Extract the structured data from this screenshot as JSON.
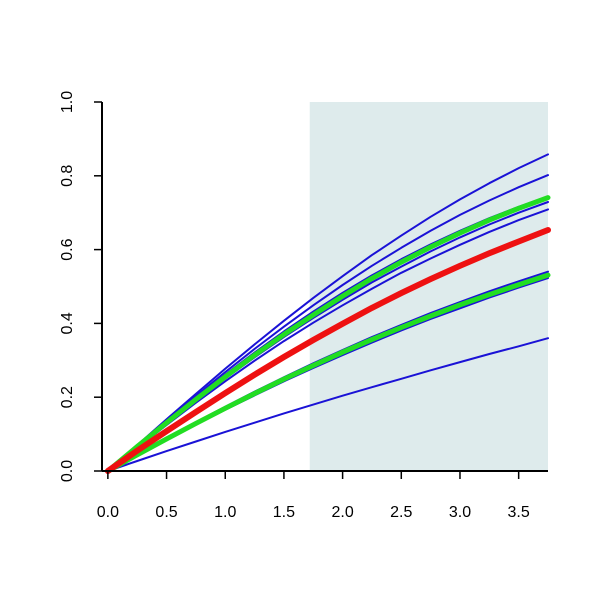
{
  "chart_data": {
    "type": "line",
    "title": "",
    "xlabel": "",
    "ylabel": "",
    "xlim": [
      -0.05,
      3.75
    ],
    "ylim": [
      0,
      1
    ],
    "x_ticks": [
      {
        "value": 0.0,
        "label": "0.0"
      },
      {
        "value": 0.5,
        "label": "0.5"
      },
      {
        "value": 1.0,
        "label": "1.0"
      },
      {
        "value": 1.5,
        "label": "1.5"
      },
      {
        "value": 2.0,
        "label": "2.0"
      },
      {
        "value": 2.5,
        "label": "2.5"
      },
      {
        "value": 3.0,
        "label": "3.0"
      },
      {
        "value": 3.5,
        "label": "3.5"
      }
    ],
    "y_ticks": [
      {
        "value": 0.0,
        "label": "0.0"
      },
      {
        "value": 0.2,
        "label": "0.2"
      },
      {
        "value": 0.4,
        "label": "0.4"
      },
      {
        "value": 0.6,
        "label": "0.6"
      },
      {
        "value": 0.8,
        "label": "0.8"
      },
      {
        "value": 1.0,
        "label": "1.0"
      }
    ],
    "shaded_region": {
      "x_from": 1.72,
      "x_to": 3.75,
      "color": "#deebec"
    },
    "grid": false,
    "x": [
      0,
      0.25,
      0.5,
      0.75,
      1.0,
      1.25,
      1.5,
      1.75,
      2.0,
      2.25,
      2.5,
      2.75,
      3.0,
      3.25,
      3.5,
      3.75
    ],
    "series": [
      {
        "color": "#1a12d6",
        "width": 2,
        "values": [
          0,
          0.07,
          0.14,
          0.209,
          0.277,
          0.343,
          0.407,
          0.469,
          0.528,
          0.585,
          0.638,
          0.689,
          0.736,
          0.78,
          0.821,
          0.858
        ]
      },
      {
        "color": "#1a12d6",
        "width": 2,
        "values": [
          0,
          0.069,
          0.137,
          0.203,
          0.268,
          0.331,
          0.391,
          0.449,
          0.504,
          0.556,
          0.605,
          0.651,
          0.694,
          0.733,
          0.769,
          0.802
        ]
      },
      {
        "color": "#1a12d6",
        "width": 2,
        "values": [
          0,
          0.068,
          0.134,
          0.199,
          0.261,
          0.321,
          0.378,
          0.432,
          0.483,
          0.53,
          0.574,
          0.614,
          0.651,
          0.685,
          0.716,
          0.744
        ]
      },
      {
        "color": "#1a12d6",
        "width": 2,
        "values": [
          0,
          0.065,
          0.129,
          0.191,
          0.251,
          0.308,
          0.363,
          0.415,
          0.464,
          0.511,
          0.554,
          0.595,
          0.633,
          0.668,
          0.7,
          0.729
        ]
      },
      {
        "color": "#1a12d6",
        "width": 2,
        "values": [
          0,
          0.063,
          0.125,
          0.185,
          0.243,
          0.299,
          0.352,
          0.402,
          0.449,
          0.494,
          0.537,
          0.576,
          0.613,
          0.648,
          0.68,
          0.709
        ]
      },
      {
        "color": "#1a12d6",
        "width": 2,
        "values": [
          0,
          0.045,
          0.089,
          0.132,
          0.174,
          0.215,
          0.254,
          0.292,
          0.328,
          0.363,
          0.396,
          0.428,
          0.458,
          0.487,
          0.514,
          0.54
        ]
      },
      {
        "color": "#1a12d6",
        "width": 2,
        "values": [
          0,
          0.043,
          0.085,
          0.126,
          0.166,
          0.205,
          0.243,
          0.279,
          0.314,
          0.348,
          0.381,
          0.412,
          0.441,
          0.47,
          0.497,
          0.523
        ]
      },
      {
        "color": "#1a12d6",
        "width": 2,
        "values": [
          0,
          0.027,
          0.054,
          0.08,
          0.106,
          0.131,
          0.156,
          0.18,
          0.204,
          0.227,
          0.25,
          0.273,
          0.295,
          0.317,
          0.338,
          0.36
        ]
      },
      {
        "color": "#22dd22",
        "width": 5,
        "values": [
          0,
          0.066,
          0.131,
          0.194,
          0.255,
          0.314,
          0.37,
          0.423,
          0.474,
          0.522,
          0.566,
          0.607,
          0.645,
          0.68,
          0.712,
          0.741
        ]
      },
      {
        "color": "#22dd22",
        "width": 5,
        "values": [
          0,
          0.044,
          0.087,
          0.129,
          0.17,
          0.21,
          0.249,
          0.286,
          0.322,
          0.356,
          0.389,
          0.42,
          0.45,
          0.478,
          0.505,
          0.531
        ]
      },
      {
        "color": "#ee1111",
        "width": 6,
        "values": [
          0,
          0.055,
          0.108,
          0.16,
          0.211,
          0.261,
          0.309,
          0.355,
          0.399,
          0.442,
          0.482,
          0.52,
          0.556,
          0.59,
          0.622,
          0.653
        ]
      }
    ]
  }
}
